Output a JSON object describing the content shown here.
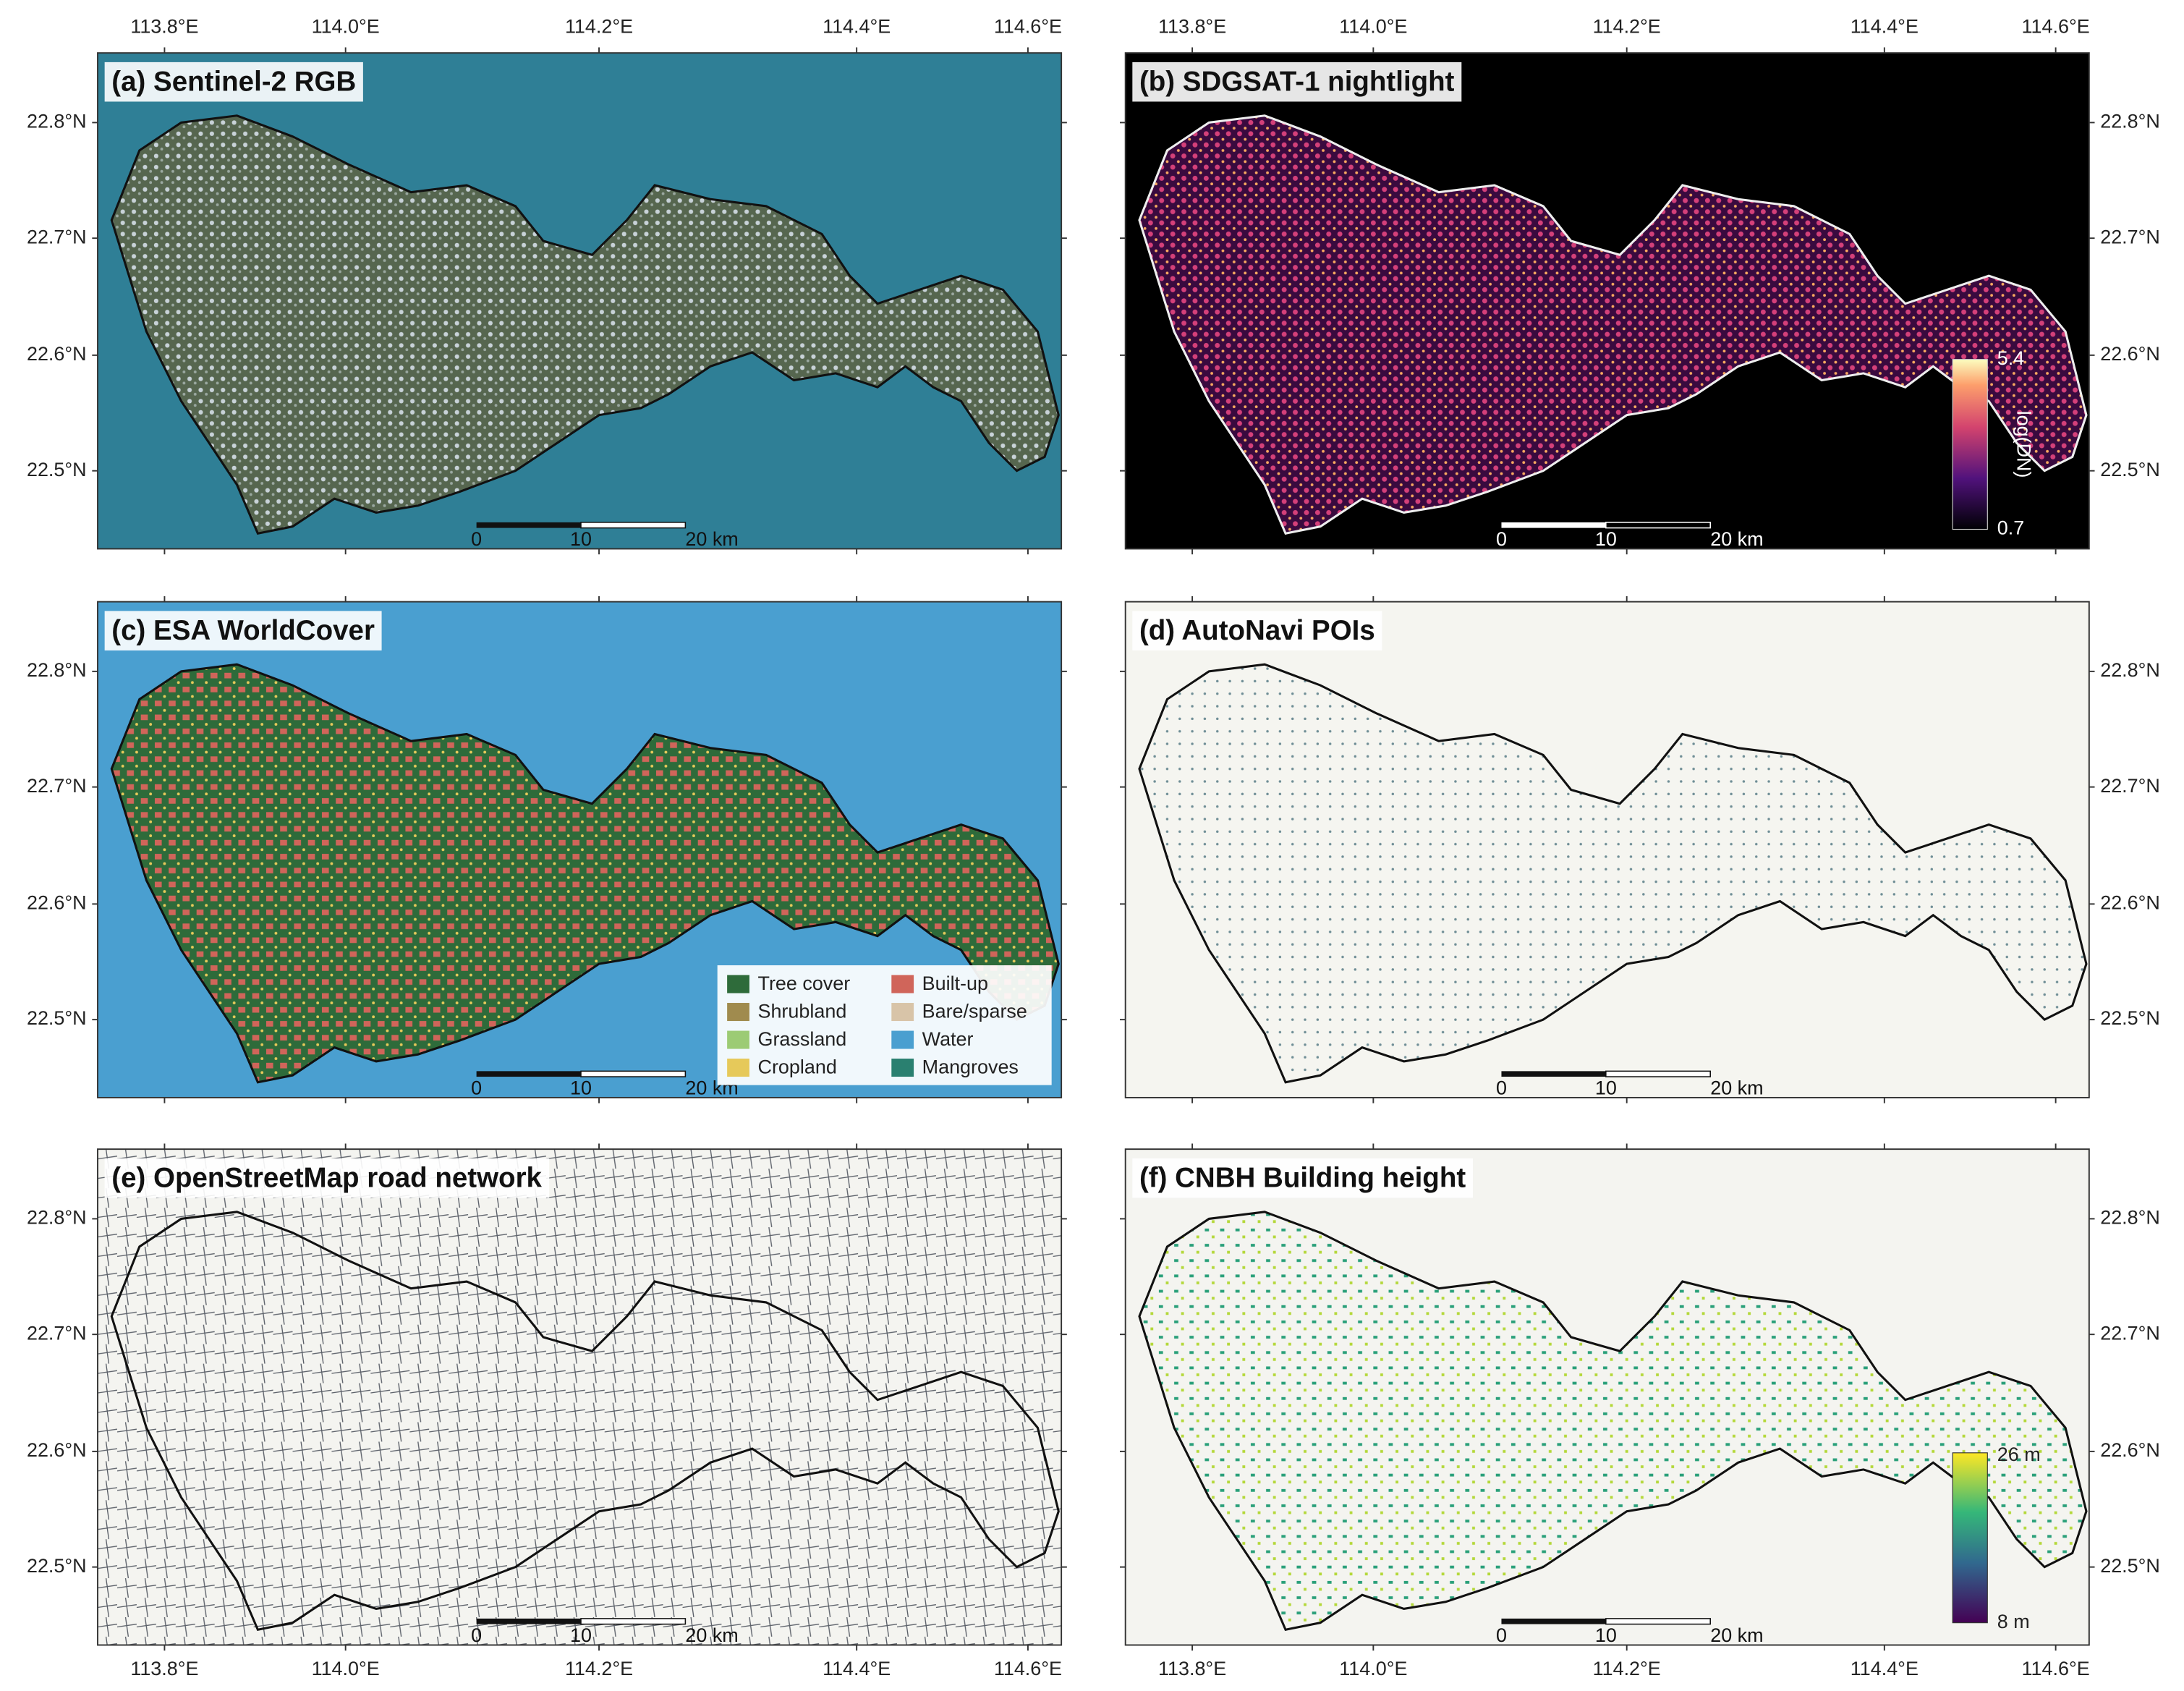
{
  "panels": [
    {
      "title": "(a) Sentinel-2 RGB"
    },
    {
      "title": "(b) SDGSAT-1 nightlight"
    },
    {
      "title": "(c) ESA WorldCover"
    },
    {
      "title": "(d) AutoNavi POIs"
    },
    {
      "title": "(e) OpenStreetMap road network"
    },
    {
      "title": "(f) CNBH Building height"
    }
  ],
  "x_ticks": [
    "113.8°E",
    "114.0°E",
    "114.2°E",
    "114.4°E",
    "114.6°E"
  ],
  "y_ticks": [
    "22.8°N",
    "22.7°N",
    "22.6°N",
    "22.5°N"
  ],
  "scale_bar": [
    "0",
    "10",
    "20 km"
  ],
  "legend": [
    {
      "label": "Tree cover",
      "color": "#2e6b3a"
    },
    {
      "label": "Shrubland",
      "color": "#a08b4e"
    },
    {
      "label": "Grassland",
      "color": "#9ccb74"
    },
    {
      "label": "Cropland",
      "color": "#e6c95a"
    },
    {
      "label": "Built-up",
      "color": "#d0655a"
    },
    {
      "label": "Bare/sparse",
      "color": "#d8c4a8"
    },
    {
      "label": "Water",
      "color": "#4a9fd0"
    },
    {
      "label": "Mangroves",
      "color": "#2a8070"
    }
  ],
  "nightlight_colorbar": {
    "label": "log(DN)",
    "max": "5.4",
    "min": "0.7"
  },
  "height_colorbar": {
    "max": "26 m",
    "min": "8 m"
  }
}
